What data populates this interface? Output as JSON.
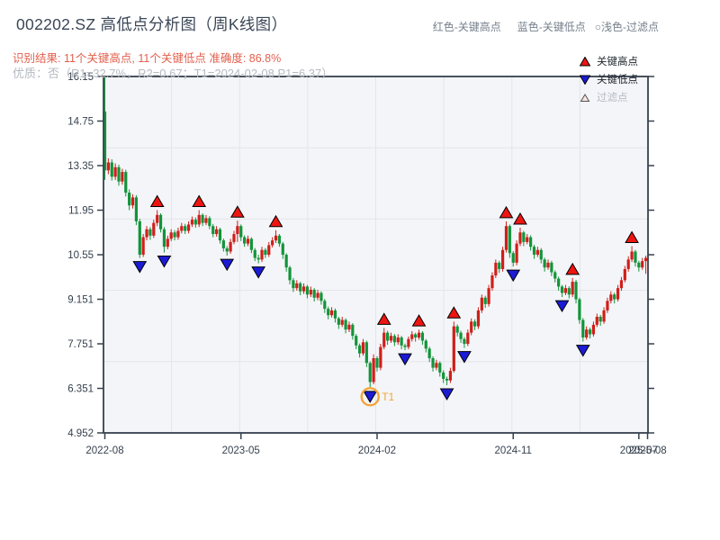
{
  "header": {
    "title": "002202.SZ 高低点分析图（周K线图）",
    "top_legend": {
      "high_label": "红色-关键高点",
      "low_label": "蓝色-关键低点",
      "filter_label": "○浅色-过滤点"
    },
    "result_line": "识别结果: 11个关键高点, 11个关键低点  准确度: 86.8%",
    "quality_line": "优质：否（R1=32.7%，R2=0.67；T1=2024-02-08 P1=6.37）"
  },
  "chart_legend": {
    "items": [
      {
        "icon": "red-up-triangle",
        "label": "关键高点"
      },
      {
        "icon": "blue-down-triangle",
        "label": "关键低点"
      },
      {
        "icon": "light-up-triangle",
        "label": "过滤点"
      }
    ]
  },
  "chart_data": {
    "type": "candlestick",
    "symbol": "002202.SZ",
    "interval": "week",
    "title": "002202.SZ 高低点分析图（周K线图）",
    "ylim": [
      4.952,
      16.15
    ],
    "y_ticks": [
      {
        "v": 16.15,
        "label": "16.15"
      },
      {
        "v": 14.75,
        "label": "14.75"
      },
      {
        "v": 13.35,
        "label": "13.35"
      },
      {
        "v": 11.95,
        "label": "11.95"
      },
      {
        "v": 10.55,
        "label": "10.55"
      },
      {
        "v": 9.151,
        "label": "9.151"
      },
      {
        "v": 7.751,
        "label": "7.751"
      },
      {
        "v": 6.351,
        "label": "6.351"
      },
      {
        "v": 4.952,
        "label": "4.952"
      }
    ],
    "x_ticks": [
      {
        "week": 0,
        "label": "2022-08"
      },
      {
        "week": 39,
        "label": "2023-05"
      },
      {
        "week": 78,
        "label": "2024-02"
      },
      {
        "week": 117,
        "label": "2024-11"
      },
      {
        "week": 153,
        "label": "2025-07"
      },
      {
        "week": 155.5,
        "label": "2025-08"
      }
    ],
    "ohlc": [
      [
        15.05,
        16.15,
        12.9,
        13.2
      ],
      [
        13.2,
        13.58,
        13.08,
        13.45
      ],
      [
        13.45,
        13.55,
        12.88,
        13.0
      ],
      [
        13.0,
        13.42,
        12.9,
        13.3
      ],
      [
        13.3,
        13.38,
        12.72,
        12.85
      ],
      [
        12.85,
        13.25,
        12.75,
        13.15
      ],
      [
        13.15,
        13.22,
        12.38,
        12.5
      ],
      [
        12.5,
        12.6,
        11.95,
        12.1
      ],
      [
        12.1,
        12.45,
        12.0,
        12.35
      ],
      [
        12.35,
        12.42,
        11.48,
        11.6
      ],
      [
        11.6,
        11.68,
        10.45,
        10.55
      ],
      [
        10.55,
        11.2,
        10.48,
        11.1
      ],
      [
        11.1,
        11.45,
        11.0,
        11.35
      ],
      [
        11.35,
        11.42,
        11.02,
        11.15
      ],
      [
        11.15,
        11.65,
        11.08,
        11.55
      ],
      [
        11.55,
        11.95,
        11.45,
        11.8
      ],
      [
        11.8,
        11.85,
        11.25,
        11.35
      ],
      [
        11.35,
        11.42,
        10.62,
        10.8
      ],
      [
        10.8,
        11.15,
        10.72,
        11.05
      ],
      [
        11.05,
        11.35,
        10.98,
        11.25
      ],
      [
        11.25,
        11.32,
        11.0,
        11.1
      ],
      [
        11.1,
        11.4,
        11.02,
        11.3
      ],
      [
        11.3,
        11.55,
        11.22,
        11.45
      ],
      [
        11.45,
        11.52,
        11.2,
        11.3
      ],
      [
        11.3,
        11.6,
        11.22,
        11.5
      ],
      [
        11.5,
        11.75,
        11.42,
        11.65
      ],
      [
        11.65,
        11.72,
        11.4,
        11.5
      ],
      [
        11.5,
        11.95,
        11.42,
        11.8
      ],
      [
        11.8,
        11.85,
        11.45,
        11.55
      ],
      [
        11.55,
        11.8,
        11.48,
        11.7
      ],
      [
        11.7,
        11.76,
        11.35,
        11.45
      ],
      [
        11.45,
        11.52,
        11.1,
        11.2
      ],
      [
        11.2,
        11.45,
        11.12,
        11.35
      ],
      [
        11.35,
        11.4,
        10.9,
        11.0
      ],
      [
        11.0,
        11.06,
        10.65,
        10.75
      ],
      [
        10.75,
        10.82,
        10.52,
        10.65
      ],
      [
        10.65,
        11.05,
        10.58,
        10.95
      ],
      [
        10.95,
        11.3,
        10.88,
        11.2
      ],
      [
        11.2,
        11.62,
        10.95,
        11.45
      ],
      [
        11.45,
        11.5,
        10.98,
        11.1
      ],
      [
        11.1,
        11.16,
        10.8,
        10.9
      ],
      [
        10.9,
        11.15,
        10.82,
        11.05
      ],
      [
        11.05,
        11.1,
        10.6,
        10.7
      ],
      [
        10.7,
        10.76,
        10.35,
        10.45
      ],
      [
        10.45,
        10.55,
        10.28,
        10.4
      ],
      [
        10.4,
        10.8,
        10.32,
        10.7
      ],
      [
        10.7,
        10.76,
        10.45,
        10.55
      ],
      [
        10.55,
        10.95,
        10.48,
        10.85
      ],
      [
        10.85,
        11.1,
        10.78,
        11.0
      ],
      [
        11.0,
        11.32,
        10.92,
        11.15
      ],
      [
        11.15,
        11.2,
        10.8,
        10.9
      ],
      [
        10.9,
        10.95,
        10.42,
        10.55
      ],
      [
        10.55,
        10.6,
        10.02,
        10.15
      ],
      [
        10.15,
        10.2,
        9.62,
        9.75
      ],
      [
        9.75,
        9.82,
        9.38,
        9.5
      ],
      [
        9.5,
        9.75,
        9.42,
        9.65
      ],
      [
        9.65,
        9.7,
        9.28,
        9.4
      ],
      [
        9.4,
        9.65,
        9.32,
        9.55
      ],
      [
        9.55,
        9.6,
        9.18,
        9.3
      ],
      [
        9.3,
        9.55,
        9.22,
        9.45
      ],
      [
        9.45,
        9.5,
        9.08,
        9.2
      ],
      [
        9.2,
        9.45,
        9.12,
        9.35
      ],
      [
        9.35,
        9.4,
        8.98,
        9.1
      ],
      [
        9.1,
        9.16,
        8.72,
        8.85
      ],
      [
        8.85,
        8.92,
        8.52,
        8.65
      ],
      [
        8.65,
        8.9,
        8.58,
        8.8
      ],
      [
        8.8,
        8.86,
        8.42,
        8.55
      ],
      [
        8.55,
        8.6,
        8.22,
        8.35
      ],
      [
        8.35,
        8.6,
        8.28,
        8.5
      ],
      [
        8.5,
        8.55,
        8.08,
        8.2
      ],
      [
        8.2,
        8.45,
        8.12,
        8.35
      ],
      [
        8.35,
        8.4,
        7.88,
        8.0
      ],
      [
        8.0,
        8.06,
        7.58,
        7.7
      ],
      [
        7.7,
        7.76,
        7.32,
        7.45
      ],
      [
        7.45,
        7.9,
        7.38,
        7.8
      ],
      [
        7.8,
        7.85,
        7.02,
        7.15
      ],
      [
        7.15,
        7.2,
        6.37,
        6.55
      ],
      [
        6.55,
        7.42,
        6.48,
        7.3
      ],
      [
        7.3,
        7.36,
        6.88,
        7.0
      ],
      [
        7.0,
        7.75,
        6.92,
        7.65
      ],
      [
        7.65,
        8.25,
        7.58,
        8.1
      ],
      [
        8.1,
        8.16,
        7.72,
        7.85
      ],
      [
        7.85,
        8.1,
        7.78,
        8.0
      ],
      [
        8.0,
        8.06,
        7.68,
        7.8
      ],
      [
        7.8,
        8.05,
        7.72,
        7.95
      ],
      [
        7.95,
        8.0,
        7.58,
        7.7
      ],
      [
        7.7,
        7.76,
        7.55,
        7.65
      ],
      [
        7.65,
        7.98,
        7.58,
        7.9
      ],
      [
        7.9,
        8.15,
        7.82,
        8.05
      ],
      [
        8.05,
        8.1,
        7.82,
        7.95
      ],
      [
        7.95,
        8.2,
        7.88,
        8.1
      ],
      [
        8.1,
        8.15,
        7.72,
        7.85
      ],
      [
        7.85,
        7.9,
        7.48,
        7.6
      ],
      [
        7.6,
        7.66,
        7.18,
        7.3
      ],
      [
        7.3,
        7.36,
        6.88,
        7.0
      ],
      [
        7.0,
        7.25,
        6.92,
        7.15
      ],
      [
        7.15,
        7.2,
        6.72,
        6.85
      ],
      [
        6.85,
        6.92,
        6.52,
        6.65
      ],
      [
        6.65,
        6.72,
        6.45,
        6.6
      ],
      [
        6.6,
        7.0,
        6.52,
        6.9
      ],
      [
        6.9,
        8.45,
        6.85,
        8.3
      ],
      [
        8.3,
        8.36,
        7.98,
        8.1
      ],
      [
        8.1,
        8.16,
        7.78,
        7.9
      ],
      [
        7.9,
        7.96,
        7.62,
        7.75
      ],
      [
        7.75,
        8.2,
        7.68,
        8.1
      ],
      [
        8.1,
        8.55,
        8.02,
        8.45
      ],
      [
        8.45,
        8.52,
        8.18,
        8.3
      ],
      [
        8.3,
        8.9,
        8.22,
        8.8
      ],
      [
        8.8,
        9.3,
        8.72,
        9.2
      ],
      [
        9.2,
        9.26,
        8.88,
        9.0
      ],
      [
        9.0,
        9.6,
        8.92,
        9.5
      ],
      [
        9.5,
        10.0,
        9.42,
        9.9
      ],
      [
        9.9,
        10.4,
        9.82,
        10.3
      ],
      [
        10.3,
        10.36,
        9.98,
        10.1
      ],
      [
        10.1,
        10.8,
        10.02,
        10.7
      ],
      [
        10.7,
        11.6,
        10.62,
        11.45
      ],
      [
        11.45,
        11.5,
        10.45,
        10.6
      ],
      [
        10.6,
        10.66,
        10.18,
        10.3
      ],
      [
        10.3,
        11.0,
        10.22,
        10.9
      ],
      [
        10.9,
        11.4,
        10.82,
        11.25
      ],
      [
        11.25,
        11.3,
        10.82,
        10.95
      ],
      [
        10.95,
        11.2,
        10.88,
        11.1
      ],
      [
        11.1,
        11.16,
        10.68,
        10.8
      ],
      [
        10.8,
        10.86,
        10.42,
        10.55
      ],
      [
        10.55,
        10.8,
        10.48,
        10.7
      ],
      [
        10.7,
        10.76,
        10.28,
        10.4
      ],
      [
        10.4,
        10.46,
        10.02,
        10.15
      ],
      [
        10.15,
        10.4,
        10.08,
        10.3
      ],
      [
        10.3,
        10.36,
        9.88,
        10.0
      ],
      [
        10.0,
        10.06,
        9.68,
        9.8
      ],
      [
        9.8,
        9.86,
        9.42,
        9.55
      ],
      [
        9.55,
        9.6,
        9.22,
        9.35
      ],
      [
        9.35,
        9.6,
        9.28,
        9.5
      ],
      [
        9.5,
        9.56,
        9.18,
        9.3
      ],
      [
        9.3,
        9.82,
        9.22,
        9.7
      ],
      [
        9.7,
        9.76,
        9.02,
        9.15
      ],
      [
        9.15,
        9.2,
        8.38,
        8.5
      ],
      [
        8.5,
        8.56,
        7.82,
        7.95
      ],
      [
        7.95,
        8.3,
        7.88,
        8.2
      ],
      [
        8.2,
        8.26,
        7.92,
        8.05
      ],
      [
        8.05,
        8.45,
        7.98,
        8.35
      ],
      [
        8.35,
        8.7,
        8.28,
        8.6
      ],
      [
        8.6,
        8.66,
        8.32,
        8.45
      ],
      [
        8.45,
        8.9,
        8.38,
        8.8
      ],
      [
        8.8,
        9.2,
        8.72,
        9.1
      ],
      [
        9.1,
        9.4,
        9.02,
        9.3
      ],
      [
        9.3,
        9.36,
        9.02,
        9.15
      ],
      [
        9.15,
        9.6,
        9.08,
        9.5
      ],
      [
        9.5,
        9.85,
        9.42,
        9.75
      ],
      [
        9.75,
        10.2,
        9.68,
        10.1
      ],
      [
        10.1,
        10.5,
        10.02,
        10.4
      ],
      [
        10.4,
        10.82,
        10.32,
        10.65
      ],
      [
        10.65,
        10.7,
        10.18,
        10.3
      ],
      [
        10.3,
        10.36,
        10.02,
        10.15
      ],
      [
        10.15,
        10.45,
        10.08,
        10.35
      ],
      [
        10.35,
        10.52,
        9.95,
        10.45
      ]
    ],
    "key_highs": [
      {
        "week": 15,
        "price": 11.95
      },
      {
        "week": 27,
        "price": 11.95
      },
      {
        "week": 38,
        "price": 11.62
      },
      {
        "week": 49,
        "price": 11.32
      },
      {
        "week": 80,
        "price": 8.25
      },
      {
        "week": 90,
        "price": 8.2
      },
      {
        "week": 100,
        "price": 8.45
      },
      {
        "week": 115,
        "price": 11.6
      },
      {
        "week": 119,
        "price": 11.4
      },
      {
        "week": 134,
        "price": 9.82
      },
      {
        "week": 151,
        "price": 10.82
      }
    ],
    "key_lows": [
      {
        "week": 10,
        "price": 10.45
      },
      {
        "week": 17,
        "price": 10.62
      },
      {
        "week": 35,
        "price": 10.52
      },
      {
        "week": 44,
        "price": 10.28
      },
      {
        "week": 76,
        "price": 6.37
      },
      {
        "week": 86,
        "price": 7.55
      },
      {
        "week": 98,
        "price": 6.45
      },
      {
        "week": 103,
        "price": 7.62
      },
      {
        "week": 117,
        "price": 10.18
      },
      {
        "week": 131,
        "price": 9.22
      },
      {
        "week": 137,
        "price": 7.82
      }
    ],
    "t1_annotation": {
      "week": 76,
      "price": 6.37,
      "label": "T1"
    },
    "colors": {
      "up": "#cf1f1a",
      "down": "#12943a",
      "key_high": "#ee1511",
      "key_low": "#1b1bd6",
      "filter_fill": "#f8e4de",
      "plot_bg": "#f4f5f8",
      "grid": "#e3e5e9",
      "axis": "#36414e",
      "t1": "#f2a53a"
    }
  }
}
